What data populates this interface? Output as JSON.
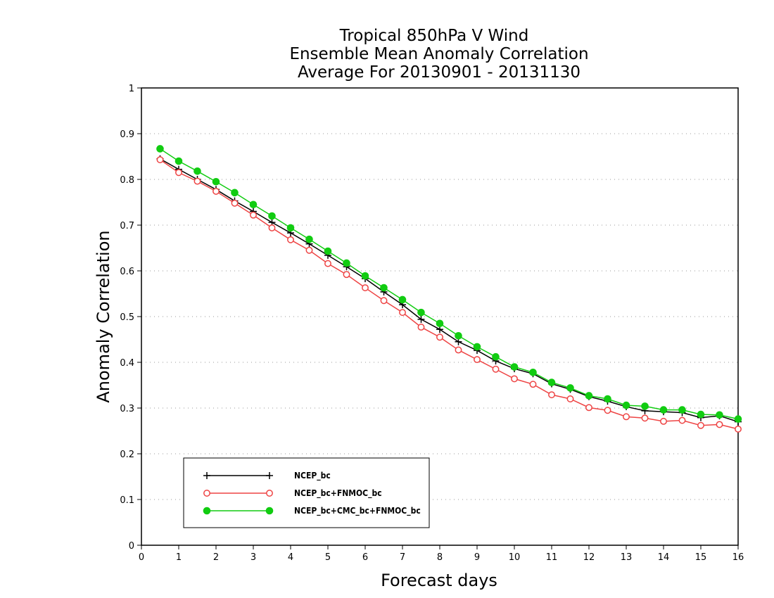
{
  "chart_data": {
    "type": "line",
    "title_lines": [
      "Tropical 850hPa V Wind",
      "Ensemble Mean Anomaly Correlation",
      "Average For 20130901 - 20131130"
    ],
    "xlabel": "Forecast days",
    "ylabel": "Anomaly Correlation",
    "xlim": [
      0,
      16
    ],
    "ylim": [
      0,
      1
    ],
    "x_ticks": [
      "0",
      "1",
      "2",
      "3",
      "4",
      "5",
      "6",
      "7",
      "8",
      "9",
      "10",
      "11",
      "12",
      "13",
      "14",
      "15",
      "16"
    ],
    "y_ticks": [
      "0",
      "0.1",
      "0.2",
      "0.3",
      "0.4",
      "0.5",
      "0.6",
      "0.7",
      "0.8",
      "0.9",
      "1"
    ],
    "grid": "horizontal dotted",
    "legend_position": "bottom-left",
    "x": [
      0.5,
      1,
      1.5,
      2,
      2.5,
      3,
      3.5,
      4,
      4.5,
      5,
      5.5,
      6,
      6.5,
      7,
      7.5,
      8,
      8.5,
      9,
      9.5,
      10,
      10.5,
      11,
      11.5,
      12,
      12.5,
      13,
      13.5,
      14,
      14.5,
      15,
      15.5,
      16
    ],
    "series": [
      {
        "name": "NCEP_bc",
        "color": "#000000",
        "marker": "plus",
        "values": [
          0.845,
          0.822,
          0.8,
          0.778,
          0.753,
          0.73,
          0.706,
          0.683,
          0.659,
          0.634,
          0.609,
          0.583,
          0.554,
          0.526,
          0.494,
          0.472,
          0.445,
          0.426,
          0.403,
          0.386,
          0.375,
          0.353,
          0.341,
          0.325,
          0.315,
          0.303,
          0.294,
          0.292,
          0.29,
          0.279,
          0.283,
          0.27
        ]
      },
      {
        "name": "NCEP_bc+FNMOC_bc",
        "color": "#ee4444",
        "marker": "open-circle",
        "values": [
          0.843,
          0.815,
          0.796,
          0.774,
          0.748,
          0.722,
          0.694,
          0.668,
          0.645,
          0.616,
          0.592,
          0.563,
          0.535,
          0.509,
          0.477,
          0.455,
          0.427,
          0.406,
          0.385,
          0.364,
          0.352,
          0.329,
          0.32,
          0.301,
          0.295,
          0.281,
          0.278,
          0.271,
          0.273,
          0.262,
          0.264,
          0.254
        ]
      },
      {
        "name": "NCEP_bc+CMC_bc+FNMOC_bc",
        "color": "#11cc11",
        "marker": "filled-circle",
        "values": [
          0.867,
          0.84,
          0.818,
          0.795,
          0.771,
          0.745,
          0.72,
          0.694,
          0.669,
          0.643,
          0.617,
          0.589,
          0.563,
          0.537,
          0.509,
          0.485,
          0.458,
          0.434,
          0.412,
          0.39,
          0.378,
          0.356,
          0.344,
          0.327,
          0.32,
          0.306,
          0.304,
          0.296,
          0.296,
          0.286,
          0.285,
          0.276
        ]
      }
    ]
  }
}
